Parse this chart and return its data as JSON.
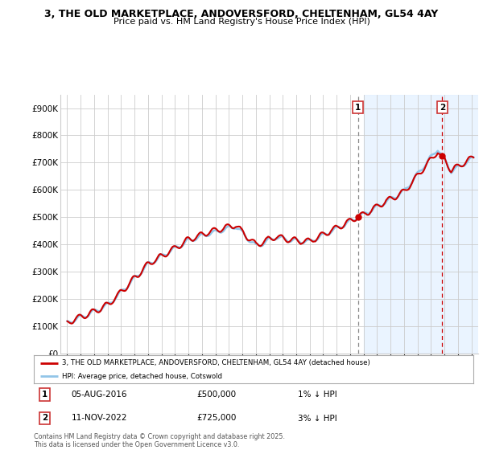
{
  "title_line1": "3, THE OLD MARKETPLACE, ANDOVERSFORD, CHELTENHAM, GL54 4AY",
  "title_line2": "Price paid vs. HM Land Registry's House Price Index (HPI)",
  "ylim": [
    0,
    950000
  ],
  "yticks": [
    0,
    100000,
    200000,
    300000,
    400000,
    500000,
    600000,
    700000,
    800000,
    900000
  ],
  "ytick_labels": [
    "£0",
    "£100K",
    "£200K",
    "£300K",
    "£400K",
    "£500K",
    "£600K",
    "£700K",
    "£800K",
    "£900K"
  ],
  "hpi_color": "#92c5e8",
  "price_color": "#cc0000",
  "marker1_date": "05-AUG-2016",
  "marker1_price": "£500,000",
  "marker1_hpi": "1% ↓ HPI",
  "marker2_date": "11-NOV-2022",
  "marker2_price": "£725,000",
  "marker2_hpi": "3% ↓ HPI",
  "legend_house": "3, THE OLD MARKETPLACE, ANDOVERSFORD, CHELTENHAM, GL54 4AY (detached house)",
  "legend_hpi": "HPI: Average price, detached house, Cotswold",
  "footnote": "Contains HM Land Registry data © Crown copyright and database right 2025.\nThis data is licensed under the Open Government Licence v3.0.",
  "bg_color": "#ffffff",
  "grid_color": "#cccccc",
  "shade_color": "#ddeeff",
  "shade_start": 2017.0,
  "xlim_left": 1994.5,
  "xlim_right": 2025.5
}
